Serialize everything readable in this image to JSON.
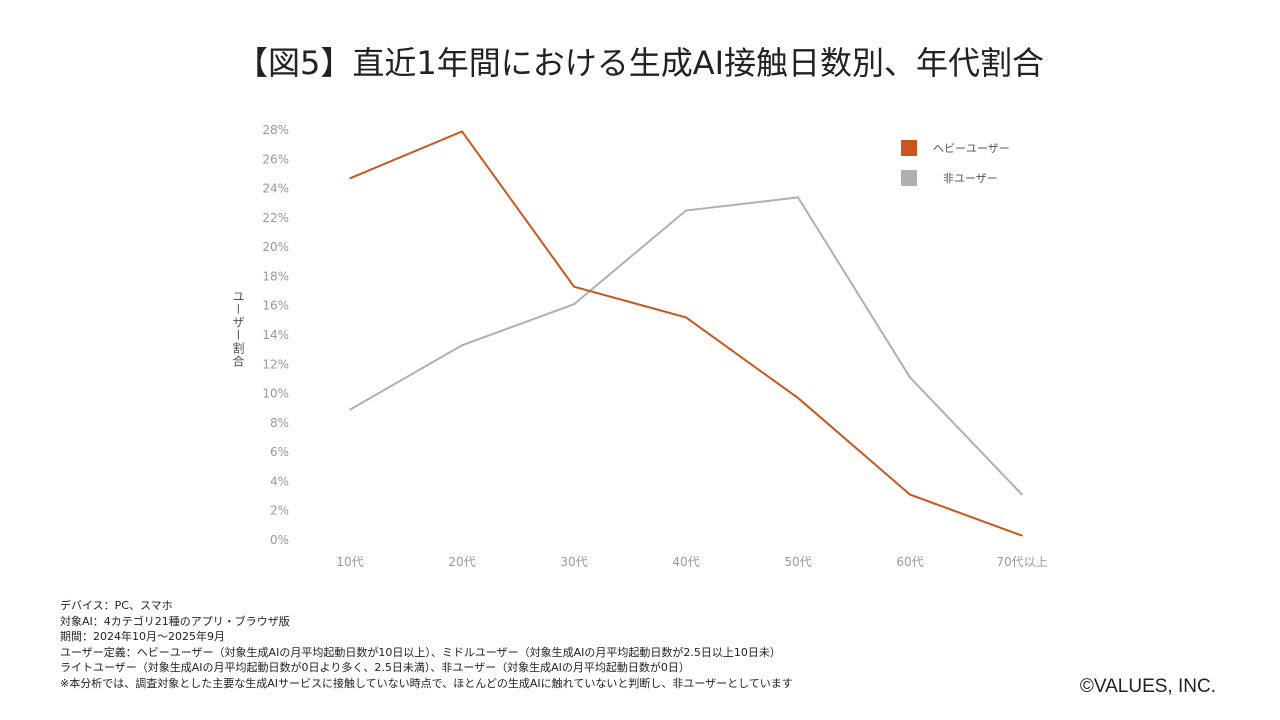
{
  "title": "【図5】直近1年間における生成AI接触日数別、年代割合",
  "chart_data": {
    "type": "line",
    "title": "【図5】直近1年間における生成AI接触日数別、年代割合",
    "xlabel": "",
    "ylabel": "ユーザー割合",
    "categories": [
      "10代",
      "20代",
      "30代",
      "40代",
      "50代",
      "60代",
      "70代以上"
    ],
    "y_ticks": [
      "0%",
      "2%",
      "4%",
      "6%",
      "8%",
      "10%",
      "12%",
      "14%",
      "16%",
      "18%",
      "20%",
      "22%",
      "24%",
      "26%",
      "28%"
    ],
    "ylim": [
      0,
      28
    ],
    "grid": false,
    "legend_position": "top-right",
    "series": [
      {
        "name": "ヘビーユーザー",
        "color": "#C9561E",
        "values": [
          24.7,
          27.9,
          17.3,
          15.2,
          9.7,
          3.1,
          0.3
        ]
      },
      {
        "name": "非ユーザー",
        "color": "#B3AFAD",
        "values": [
          8.9,
          13.3,
          16.1,
          22.5,
          23.4,
          11.1,
          3.1
        ]
      }
    ]
  },
  "notes": [
    "デバイス：PC、スマホ",
    "対象AI：4カテゴリ21種のアプリ・ブラウザ版",
    "期間：2024年10月～2025年9月",
    "ユーザー定義：ヘビーユーザー（対象生成AIの月平均起動日数が10日以上）、ミドルユーザー（対象生成AIの月平均起動日数が2.5日以上10日未）",
    "ライトユーザー（対象生成AIの月平均起動日数が0日より多く、2.5日未満）、非ユーザー（対象生成AIの月平均起動日数が0日）",
    "※本分析では、調査対象とした主要な生成AIサービスに接触していない時点で、ほとんどの生成AIに触れていないと判断し、非ユーザーとしています"
  ],
  "copyright": "©VALUES, INC."
}
